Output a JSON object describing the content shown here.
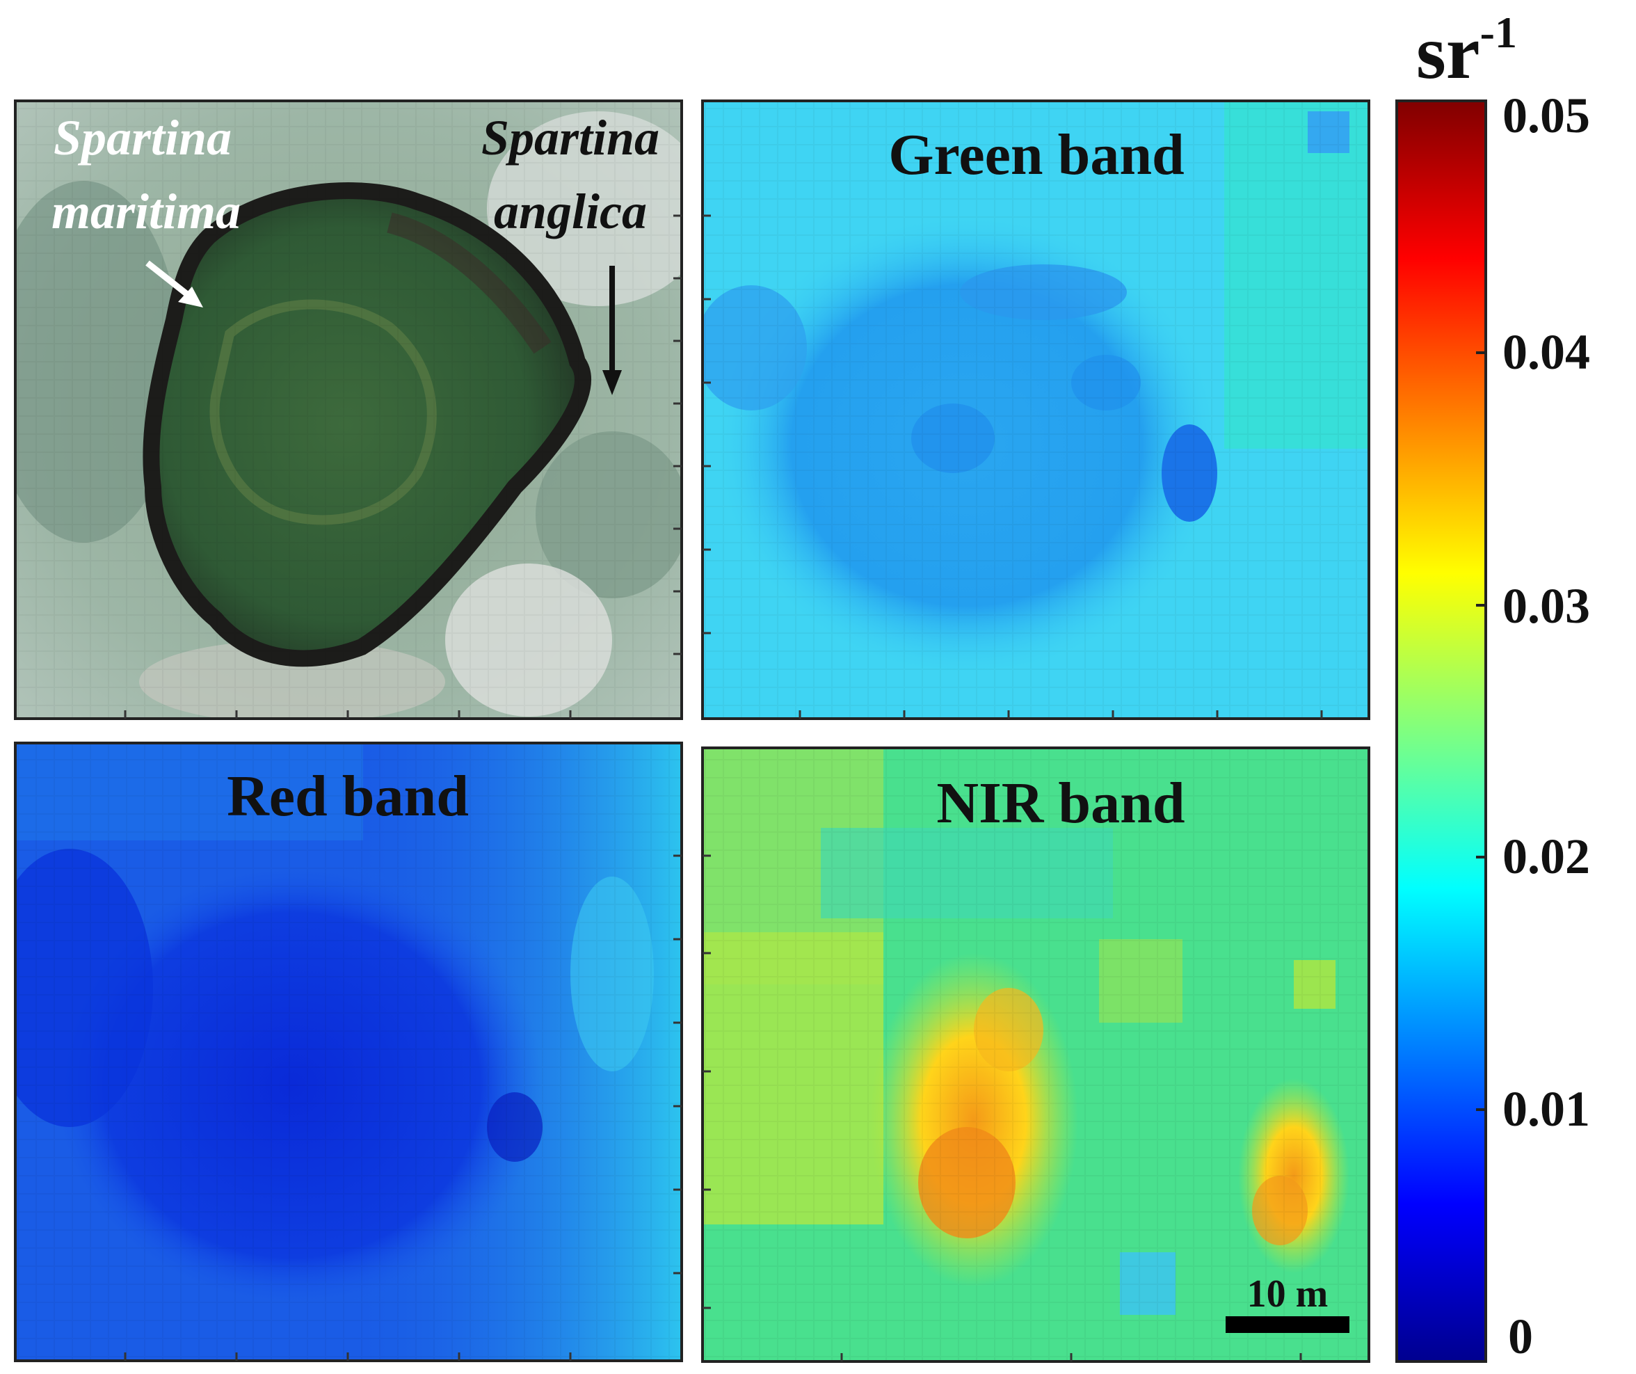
{
  "panels": {
    "photo": {
      "labels": {
        "maritima_line1": "Spartina",
        "maritima_line2": "maritima",
        "anglica_line1": "Spartina",
        "anglica_line2": "anglica"
      }
    },
    "green": {
      "title": "Green band"
    },
    "red": {
      "title": "Red band"
    },
    "nir": {
      "title": "NIR band",
      "scale_bar": "10 m"
    }
  },
  "colorbar": {
    "unit": "sr",
    "unit_exponent": "-1",
    "ticks": [
      "0.05",
      "0.04",
      "0.03",
      "0.02",
      "0.01",
      "0"
    ],
    "range": [
      0,
      0.05
    ],
    "colormap": "jet",
    "colors": [
      "#00008f",
      "#0000ff",
      "#00ffff",
      "#ffff00",
      "#ff0000",
      "#800000"
    ]
  }
}
